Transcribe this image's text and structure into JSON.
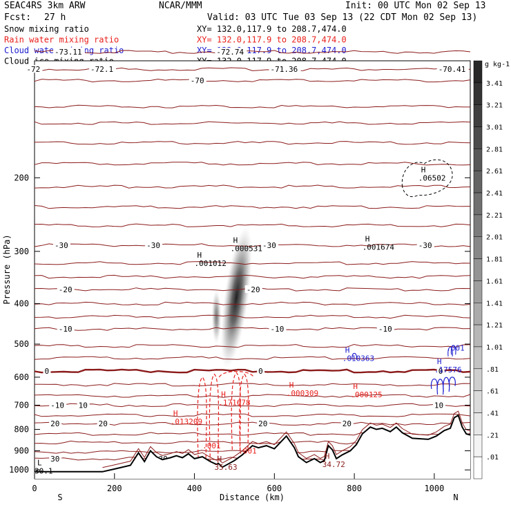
{
  "header": {
    "model": "SEAC4RS  3km ARW",
    "org": "NCAR/MMM",
    "init": "Init: 00 UTC Mon 02 Sep 13",
    "fcst_label": "Fcst:",
    "fcst_value": "27 h",
    "valid": "Valid: 03 UTC Tue 03 Sep 13 (22 CDT Mon 02 Sep 13)"
  },
  "fields": [
    {
      "name": "Snow mixing ratio",
      "xy": "XY= 132.0,117.9 to 208.7,474.0",
      "color": "#000000"
    },
    {
      "name": "Rain water mixing ratio",
      "xy": "XY= 132.0,117.9 to 208.7,474.0",
      "color": "#e8201c"
    },
    {
      "name": "Cloud water mixing ratio",
      "xy": "XY= 132.0,117.9 to 208.7,474.0",
      "color": "#1c1cd0"
    },
    {
      "name": "Cloud ice mixing ratio",
      "xy": "XY= 132.0,117.9 to 208.7,474.0",
      "color": "#000000"
    }
  ],
  "colorbar": {
    "unit": "g kg-1",
    "labels": [
      "3.41",
      "3.21",
      "3.01",
      "2.81",
      "2.61",
      "2.41",
      "2.21",
      "2.01",
      "1.81",
      "1.61",
      "1.41",
      "1.21",
      "1.01",
      ".81",
      ".61",
      ".41",
      ".21",
      ".01"
    ]
  },
  "chart_data": {
    "type": "cross-section",
    "xlabel": "Distance (km)",
    "ylabel": "Pressure (hPa)",
    "xlim": [
      0,
      1090
    ],
    "ylim": [
      1050,
      105
    ],
    "y_scale": "log",
    "x_ticks": [
      0,
      200,
      400,
      600,
      800,
      1000
    ],
    "y_ticks": [
      200,
      300,
      400,
      500,
      600,
      700,
      800,
      900,
      1000
    ],
    "x_end_labels": [
      "S",
      "N"
    ],
    "temperature_contour_color": "#8b1a1a",
    "isotherm_levels": [
      {
        "p": 110,
        "labels": [
          {
            "x": -20,
            "t": "-72"
          },
          {
            "x": 140,
            "t": "-72.1"
          },
          {
            "x": 590,
            "t": "-71.36"
          },
          {
            "x": 1010,
            "t": "-70.41"
          }
        ]
      },
      {
        "p": 100,
        "labels": [
          {
            "x": 50,
            "t": "-73.11"
          },
          {
            "x": 455,
            "t": "-72.74"
          }
        ]
      },
      {
        "p": 117,
        "labels": [
          {
            "x": 390,
            "t": "-70"
          }
        ]
      },
      {
        "p": 135,
        "labels": []
      },
      {
        "p": 148,
        "labels": []
      },
      {
        "p": 165,
        "labels": []
      },
      {
        "p": 185,
        "labels": []
      },
      {
        "p": 210,
        "labels": []
      },
      {
        "p": 235,
        "labels": []
      },
      {
        "p": 260,
        "labels": []
      },
      {
        "p": 290,
        "labels": [
          {
            "x": 50,
            "t": "-30"
          },
          {
            "x": 280,
            "t": "-30"
          },
          {
            "x": 570,
            "t": "-30"
          },
          {
            "x": 960,
            "t": "-30"
          }
        ]
      },
      {
        "p": 320,
        "labels": []
      },
      {
        "p": 345,
        "labels": []
      },
      {
        "p": 370,
        "labels": [
          {
            "x": 60,
            "t": "-20"
          },
          {
            "x": 530,
            "t": "-20"
          }
        ]
      },
      {
        "p": 400,
        "labels": []
      },
      {
        "p": 430,
        "labels": []
      },
      {
        "p": 460,
        "labels": [
          {
            "x": 60,
            "t": "-10"
          },
          {
            "x": 590,
            "t": "-10"
          },
          {
            "x": 860,
            "t": "-10"
          }
        ]
      },
      {
        "p": 505,
        "labels": []
      },
      {
        "p": 540,
        "labels": []
      },
      {
        "p": 580,
        "labels": [
          {
            "x": 25,
            "t": "0"
          },
          {
            "x": 560,
            "t": "0"
          },
          {
            "x": 1010,
            "t": "0"
          }
        ],
        "bold": true
      },
      {
        "p": 625,
        "labels": []
      },
      {
        "p": 665,
        "labels": []
      },
      {
        "p": 700,
        "labels": [
          {
            "x": 40,
            "t": "-10"
          },
          {
            "x": 110,
            "t": "10"
          },
          {
            "x": 1000,
            "t": "10"
          }
        ]
      },
      {
        "p": 740,
        "labels": []
      },
      {
        "p": 775,
        "labels": [
          {
            "x": 40,
            "t": "20"
          },
          {
            "x": 160,
            "t": "20"
          },
          {
            "x": 560,
            "t": "20"
          },
          {
            "x": 770,
            "t": "20"
          }
        ]
      },
      {
        "p": 820,
        "labels": []
      },
      {
        "p": 860,
        "labels": []
      },
      {
        "p": 905,
        "labels": []
      },
      {
        "p": 940,
        "labels": [
          {
            "x": 40,
            "t": "30"
          },
          {
            "x": 310,
            "t": "30"
          }
        ]
      }
    ],
    "terrain": [
      {
        "x": 0,
        "p": 1010
      },
      {
        "x": 170,
        "p": 1010
      },
      {
        "x": 200,
        "p": 995
      },
      {
        "x": 240,
        "p": 975
      },
      {
        "x": 260,
        "p": 910
      },
      {
        "x": 275,
        "p": 955
      },
      {
        "x": 290,
        "p": 900
      },
      {
        "x": 305,
        "p": 930
      },
      {
        "x": 320,
        "p": 945
      },
      {
        "x": 340,
        "p": 935
      },
      {
        "x": 355,
        "p": 925
      },
      {
        "x": 370,
        "p": 935
      },
      {
        "x": 385,
        "p": 915
      },
      {
        "x": 400,
        "p": 940
      },
      {
        "x": 420,
        "p": 930
      },
      {
        "x": 440,
        "p": 955
      },
      {
        "x": 455,
        "p": 970
      },
      {
        "x": 460,
        "p": 965
      },
      {
        "x": 470,
        "p": 985
      },
      {
        "x": 500,
        "p": 950
      },
      {
        "x": 520,
        "p": 920
      },
      {
        "x": 545,
        "p": 875
      },
      {
        "x": 560,
        "p": 885
      },
      {
        "x": 580,
        "p": 875
      },
      {
        "x": 600,
        "p": 890
      },
      {
        "x": 630,
        "p": 830
      },
      {
        "x": 650,
        "p": 885
      },
      {
        "x": 660,
        "p": 930
      },
      {
        "x": 680,
        "p": 960
      },
      {
        "x": 700,
        "p": 940
      },
      {
        "x": 715,
        "p": 960
      },
      {
        "x": 725,
        "p": 950
      },
      {
        "x": 735,
        "p": 875
      },
      {
        "x": 745,
        "p": 895
      },
      {
        "x": 755,
        "p": 940
      },
      {
        "x": 770,
        "p": 920
      },
      {
        "x": 790,
        "p": 900
      },
      {
        "x": 805,
        "p": 870
      },
      {
        "x": 820,
        "p": 820
      },
      {
        "x": 840,
        "p": 790
      },
      {
        "x": 855,
        "p": 800
      },
      {
        "x": 870,
        "p": 795
      },
      {
        "x": 890,
        "p": 810
      },
      {
        "x": 905,
        "p": 790
      },
      {
        "x": 920,
        "p": 815
      },
      {
        "x": 945,
        "p": 840
      },
      {
        "x": 985,
        "p": 845
      },
      {
        "x": 1005,
        "p": 830
      },
      {
        "x": 1025,
        "p": 805
      },
      {
        "x": 1040,
        "p": 795
      },
      {
        "x": 1050,
        "p": 750
      },
      {
        "x": 1060,
        "p": 740
      },
      {
        "x": 1070,
        "p": 790
      },
      {
        "x": 1080,
        "p": 820
      },
      {
        "x": 1090,
        "p": 825
      }
    ],
    "snow_core": {
      "x": 505,
      "p_top": 260,
      "p_bottom": 575,
      "max": 3.41
    },
    "rain_columns": [
      {
        "x": 420,
        "p_top": 600,
        "p_bottom": 940
      },
      {
        "x": 450,
        "p_top": 590,
        "p_bottom": 960
      },
      {
        "x": 505,
        "p_top": 585,
        "p_bottom": 895
      },
      {
        "x": 525,
        "p_top": 590,
        "p_bottom": 900
      }
    ],
    "annotations": [
      {
        "label": "H",
        "value": ".000531",
        "x": 490,
        "p": 295,
        "color": "#000000"
      },
      {
        "label": "H",
        "value": ".001012",
        "x": 400,
        "p": 320,
        "color": "#000000"
      },
      {
        "label": "H",
        "value": ".001674",
        "x": 820,
        "p": 293,
        "color": "#000000"
      },
      {
        "label": "H",
        "value": ".06502",
        "x": 960,
        "p": 200,
        "color": "#000000"
      },
      {
        "label": "H",
        "value": ".010363",
        "x": 770,
        "p": 540,
        "color": "#1c1cd0"
      },
      {
        "label": "H",
        "value": ".17576",
        "x": 1000,
        "p": 575,
        "color": "#1c1cd0"
      },
      {
        "label": "",
        "value": ".001",
        "x": 1030,
        "p": 510,
        "color": "#1c1cd0"
      },
      {
        "label": "H",
        "value": ".000309",
        "x": 630,
        "p": 655,
        "color": "#e8201c"
      },
      {
        "label": "H",
        "value": ".000125",
        "x": 790,
        "p": 660,
        "color": "#e8201c"
      },
      {
        "label": "H",
        "value": ".171678",
        "x": 460,
        "p": 690,
        "color": "#e8201c"
      },
      {
        "label": "H",
        "value": ".013209",
        "x": 340,
        "p": 765,
        "color": "#e8201c"
      },
      {
        "label": "",
        "value": ".001",
        "x": 420,
        "p": 875,
        "color": "#e8201c"
      },
      {
        "label": "",
        "value": ".001",
        "x": 510,
        "p": 900,
        "color": "#e8201c"
      },
      {
        "label": "H",
        "value": "35.63",
        "x": 450,
        "p": 985,
        "color": "#8b1a1a"
      },
      {
        "label": "H",
        "value": "34.72",
        "x": 720,
        "p": 970,
        "color": "#8b1a1a"
      },
      {
        "label": "L",
        "value": "30.1",
        "x": 0,
        "p": 1005,
        "color": "#000000"
      }
    ]
  }
}
